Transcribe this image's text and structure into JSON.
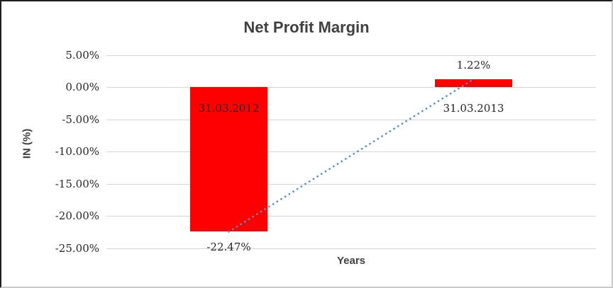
{
  "chart_data": {
    "type": "bar",
    "title": "Net Profit Margin",
    "xlabel": "Years",
    "ylabel": "IN (%)",
    "categories": [
      "31.03.2012",
      "31.03.2013"
    ],
    "values": [
      -22.47,
      1.22
    ],
    "value_labels": [
      "-22.47%",
      "1.22%"
    ],
    "ylim": [
      -25,
      5
    ],
    "yticks": [
      {
        "value": 5,
        "label": "5.00%"
      },
      {
        "value": 0,
        "label": "0.00%"
      },
      {
        "value": -5,
        "label": "-5.00%"
      },
      {
        "value": -10,
        "label": "-10.00%"
      },
      {
        "value": -15,
        "label": "-15.00%"
      },
      {
        "value": -20,
        "label": "-20.00%"
      },
      {
        "value": -25,
        "label": "-25.00%"
      }
    ],
    "grid": true,
    "legend": "none",
    "bar_color": "#ff0000",
    "trendline": {
      "type": "linear",
      "style": "dotted",
      "color": "#5591ce",
      "from_value": -22.47,
      "to_value": 1.22
    },
    "title_color": "#404040",
    "axis_title_color": "#404040",
    "tick_label_color": "#262626",
    "gridline_color": "#d6d6d6"
  }
}
